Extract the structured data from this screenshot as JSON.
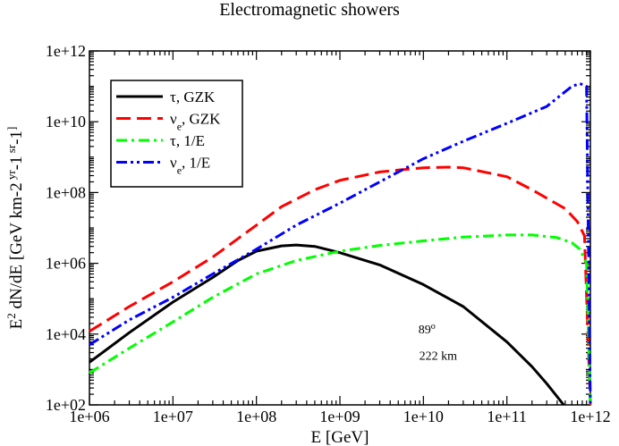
{
  "chart_data": {
    "type": "line",
    "title": "Electromagnetic showers",
    "xlabel": "E [GeV]",
    "ylabel_parts": [
      "E",
      "2",
      " dN/dE [GeV km",
      "-2",
      " yr",
      "-1",
      " sr",
      "-1",
      "]"
    ],
    "xscale": "log",
    "yscale": "log",
    "xlim": [
      1000000.0,
      1000000000000.0
    ],
    "ylim": [
      100.0,
      1000000000000.0
    ],
    "x_ticks": [
      {
        "value": 1000000.0,
        "label": "1e+06"
      },
      {
        "value": 10000000.0,
        "label": "1e+07"
      },
      {
        "value": 100000000.0,
        "label": "1e+08"
      },
      {
        "value": 1000000000.0,
        "label": "1e+09"
      },
      {
        "value": 10000000000.0,
        "label": "1e+10"
      },
      {
        "value": 100000000000.0,
        "label": "1e+11"
      },
      {
        "value": 1000000000000.0,
        "label": "1e+12"
      }
    ],
    "y_ticks": [
      {
        "value": 100.0,
        "label": "1e+02"
      },
      {
        "value": 10000.0,
        "label": "1e+04"
      },
      {
        "value": 1000000.0,
        "label": "1e+06"
      },
      {
        "value": 100000000.0,
        "label": "1e+08"
      },
      {
        "value": 10000000000.0,
        "label": "1e+10"
      },
      {
        "value": 1000000000000.0,
        "label": "1e+12"
      }
    ],
    "legend_position": "top-left",
    "series": [
      {
        "name": "τ, GZK",
        "sym": "τ",
        "sub": "",
        "tail": ", GZK",
        "color": "#000000",
        "dash": "solid",
        "x": [
          1000000.0,
          3000000.0,
          10000000.0,
          30000000.0,
          60000000.0,
          100000000.0,
          200000000.0,
          300000000.0,
          500000000.0,
          1000000000.0,
          3000000000.0,
          10000000000.0,
          30000000000.0,
          100000000000.0,
          200000000000.0,
          300000000000.0,
          480000000000.0
        ],
        "y": [
          1600.0,
          11000.0,
          80000.0,
          400000.0,
          1200000.0,
          2200000.0,
          3100000.0,
          3300000.0,
          3000000.0,
          2000000.0,
          900000.0,
          250000.0,
          60000.0,
          6000.0,
          1200.0,
          400.0,
          100.0
        ]
      },
      {
        "name": "νe, GZK",
        "sym": "ν",
        "sub": "e",
        "tail": ", GZK",
        "color": "#ff0000",
        "dash": "long-dash",
        "x": [
          1000000.0,
          3000000.0,
          10000000.0,
          30000000.0,
          100000000.0,
          200000000.0,
          500000000.0,
          1000000000.0,
          3000000000.0,
          5000000000.0,
          10000000000.0,
          20000000000.0,
          30000000000.0,
          100000000000.0,
          200000000000.0,
          500000000000.0,
          700000000000.0,
          850000000000.0,
          1000000000000.0
        ],
        "y": [
          12000.0,
          60000.0,
          300000.0,
          1500000.0,
          12000000.0,
          40000000.0,
          120000000.0,
          220000000.0,
          380000000.0,
          430000000.0,
          500000000.0,
          520000000.0,
          500000000.0,
          280000000.0,
          120000000.0,
          35000000.0,
          15000000.0,
          6000000.0,
          100.0
        ]
      },
      {
        "name": "τ, 1/E",
        "sym": "τ",
        "sub": "",
        "tail": ", 1/E",
        "color": "#00ff00",
        "dash": "dash-dot",
        "x": [
          1000000.0,
          3000000.0,
          10000000.0,
          30000000.0,
          100000000.0,
          300000000.0,
          1000000000.0,
          3000000000.0,
          10000000000.0,
          30000000000.0,
          100000000000.0,
          200000000000.0,
          400000000000.0,
          600000000000.0,
          750000000000.0,
          900000000000.0,
          1000000000000.0
        ],
        "y": [
          800.0,
          4000.0,
          22000.0,
          110000.0,
          500000.0,
          1200000.0,
          2200000.0,
          3200000.0,
          4300000.0,
          5500000.0,
          6300000.0,
          6300000.0,
          5300000.0,
          3800000.0,
          2500000.0,
          1000000.0,
          100.0
        ]
      },
      {
        "name": "νe, 1/E",
        "sym": "ν",
        "sub": "e",
        "tail": ", 1/E",
        "color": "#0000ff",
        "dash": "dash-dot-dot",
        "x": [
          1000000.0,
          3000000.0,
          10000000.0,
          30000000.0,
          100000000.0,
          300000000.0,
          1000000000.0,
          3000000000.0,
          10000000000.0,
          30000000000.0,
          100000000000.0,
          300000000000.0,
          600000000000.0,
          750000000000.0,
          900000000000.0,
          1000000000000.0
        ],
        "y": [
          5000.0,
          25000.0,
          110000.0,
          500000.0,
          2500000.0,
          12000000.0,
          50000000.0,
          200000000.0,
          900000000.0,
          2800000000.0,
          9000000000.0,
          27000000000.0,
          100000000000.0,
          120000000000.0,
          100000000000.0,
          100.0
        ]
      }
    ],
    "annotations": [
      {
        "text": "89",
        "sup": "o",
        "x": 11000000000.0,
        "y": 10500.0
      },
      {
        "text": "222 km",
        "x": 15000000000.0,
        "y": 1900.0
      }
    ]
  }
}
